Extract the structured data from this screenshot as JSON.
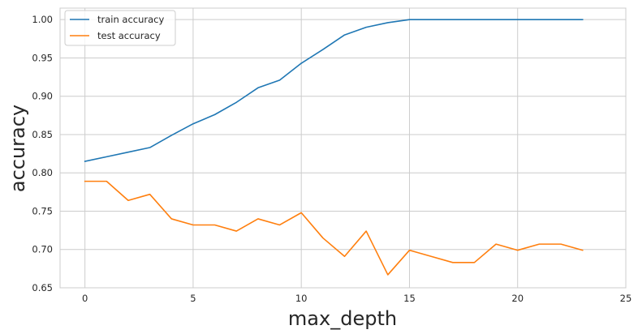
{
  "chart_data": {
    "type": "line",
    "title": "",
    "xlabel": "max_depth",
    "ylabel": "accuracy",
    "xlim": [
      -1.15,
      25
    ],
    "ylim": [
      0.65,
      1.015
    ],
    "xticks": [
      0,
      5,
      10,
      15,
      20,
      25
    ],
    "yticks": [
      0.65,
      0.7,
      0.75,
      0.8,
      0.85,
      0.9,
      0.95,
      1.0
    ],
    "grid": true,
    "legend_position": "top-left",
    "x": [
      0,
      1,
      2,
      3,
      4,
      5,
      6,
      7,
      8,
      9,
      10,
      11,
      12,
      13,
      14,
      15,
      16,
      17,
      18,
      19,
      20,
      21,
      22,
      23
    ],
    "series": [
      {
        "name": "train accuracy",
        "color": "#1f77b4",
        "values": [
          0.815,
          0.821,
          0.827,
          0.833,
          0.849,
          0.864,
          0.876,
          0.892,
          0.911,
          0.921,
          0.943,
          0.961,
          0.98,
          0.99,
          0.996,
          1.0,
          1.0,
          1.0,
          1.0,
          1.0,
          1.0,
          1.0,
          1.0,
          1.0
        ]
      },
      {
        "name": "test accuracy",
        "color": "#ff7f0e",
        "values": [
          0.789,
          0.789,
          0.764,
          0.772,
          0.74,
          0.732,
          0.732,
          0.724,
          0.74,
          0.732,
          0.748,
          0.715,
          0.691,
          0.724,
          0.667,
          0.699,
          0.691,
          0.683,
          0.683,
          0.707,
          0.699,
          0.707,
          0.707,
          0.699
        ]
      }
    ]
  }
}
